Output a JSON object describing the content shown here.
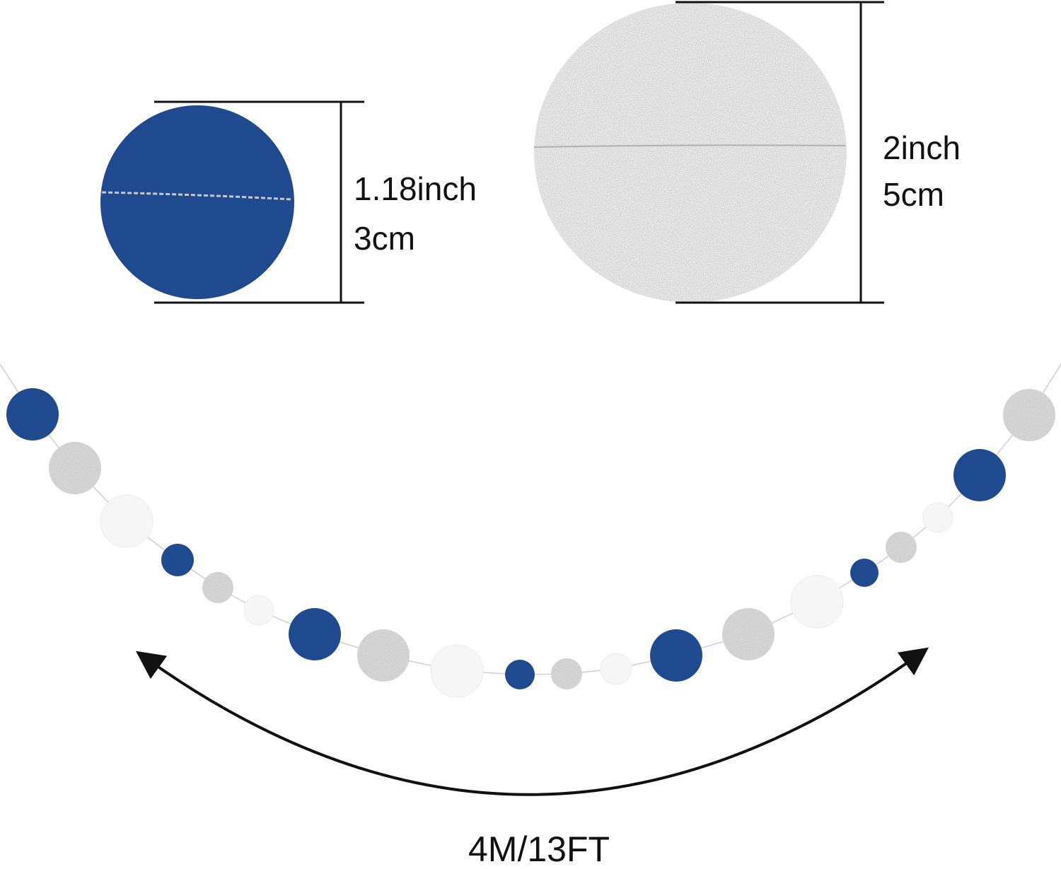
{
  "colors": {
    "navy": "#1f4a8f",
    "silver_glitter": "#d8d8d8",
    "white_dot": "#f6f6f6",
    "line": "#111111"
  },
  "small_circle": {
    "size_inch": "1.18inch",
    "size_cm": "3cm"
  },
  "large_circle": {
    "size_inch": "2inch",
    "size_cm": "5cm"
  },
  "garland": {
    "length": "4M/13FT",
    "pattern": [
      "navy",
      "silver glitter",
      "white"
    ]
  }
}
